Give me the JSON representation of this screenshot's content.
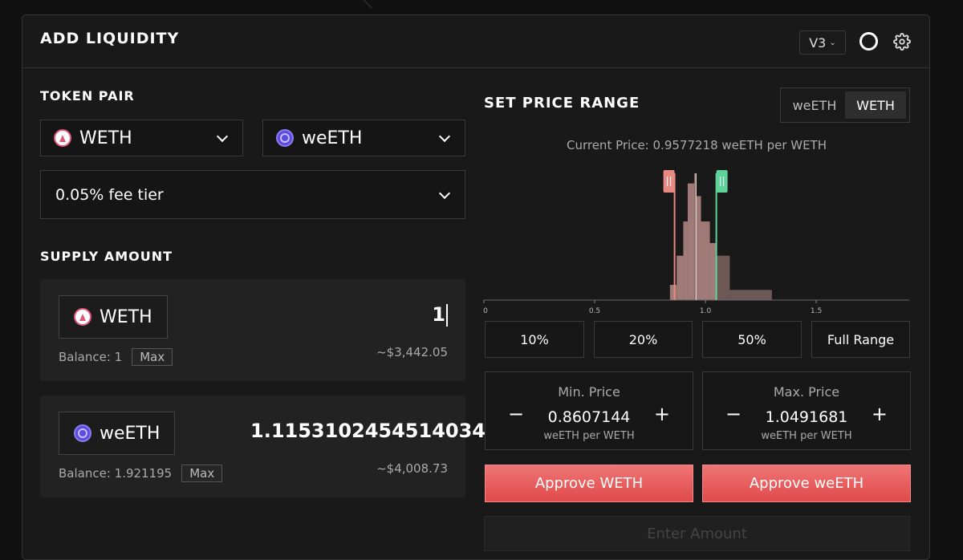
{
  "header": {
    "title": "ADD LIQUIDITY",
    "version": "V3"
  },
  "token_pair": {
    "label": "TOKEN PAIR",
    "token_a": "WETH",
    "token_b": "weETH",
    "fee_tier": "0.05% fee tier"
  },
  "supply": {
    "label": "SUPPLY AMOUNT",
    "rows": [
      {
        "token": "WETH",
        "amount": "1",
        "balance": "Balance: 1",
        "max": "Max",
        "usd": "~$3,442.05"
      },
      {
        "token": "weETH",
        "amount": "1.1153102454514034",
        "balance": "Balance: 1.921195",
        "max": "Max",
        "usd": "~$4,008.73"
      }
    ]
  },
  "price_range": {
    "title": "SET PRICE RANGE",
    "toggle": [
      "weETH",
      "WETH"
    ],
    "toggle_active": "WETH",
    "current_price": "Current Price: 0.9577218 weETH per WETH",
    "presets": [
      "10%",
      "20%",
      "50%",
      "Full Range"
    ],
    "min": {
      "label": "Min. Price",
      "value": "0.8607144",
      "unit": "weETH per WETH"
    },
    "max": {
      "label": "Max. Price",
      "value": "1.0491681",
      "unit": "weETH per WETH"
    }
  },
  "chart_data": {
    "type": "area",
    "x_ticks": [
      "0",
      "0.5",
      "1.0",
      "1.5"
    ],
    "xlim": [
      0,
      1.92
    ],
    "current_price": 0.9577218,
    "range_min": 0.8607144,
    "range_max": 1.0491681,
    "colors": {
      "in_range": "#a07a76",
      "out_range": "#6e5855",
      "min_handle": "#e88a84",
      "max_handle": "#5fd39a",
      "current": "#dddddd"
    },
    "liquidity": [
      {
        "x0": 0.84,
        "x1": 0.87,
        "y": 0.12
      },
      {
        "x0": 0.87,
        "x1": 0.9,
        "y": 0.35
      },
      {
        "x0": 0.9,
        "x1": 0.92,
        "y": 0.62
      },
      {
        "x0": 0.92,
        "x1": 0.95,
        "y": 0.92
      },
      {
        "x0": 0.95,
        "x1": 0.96,
        "y": 1.0
      },
      {
        "x0": 0.96,
        "x1": 0.98,
        "y": 0.82
      },
      {
        "x0": 0.98,
        "x1": 1.02,
        "y": 0.62
      },
      {
        "x0": 1.02,
        "x1": 1.05,
        "y": 0.45
      },
      {
        "x0": 1.05,
        "x1": 1.11,
        "y": 0.35
      },
      {
        "x0": 1.11,
        "x1": 1.3,
        "y": 0.08
      }
    ]
  },
  "actions": {
    "approve_a": "Approve WETH",
    "approve_b": "Approve weETH",
    "enter": "Enter Amount"
  }
}
